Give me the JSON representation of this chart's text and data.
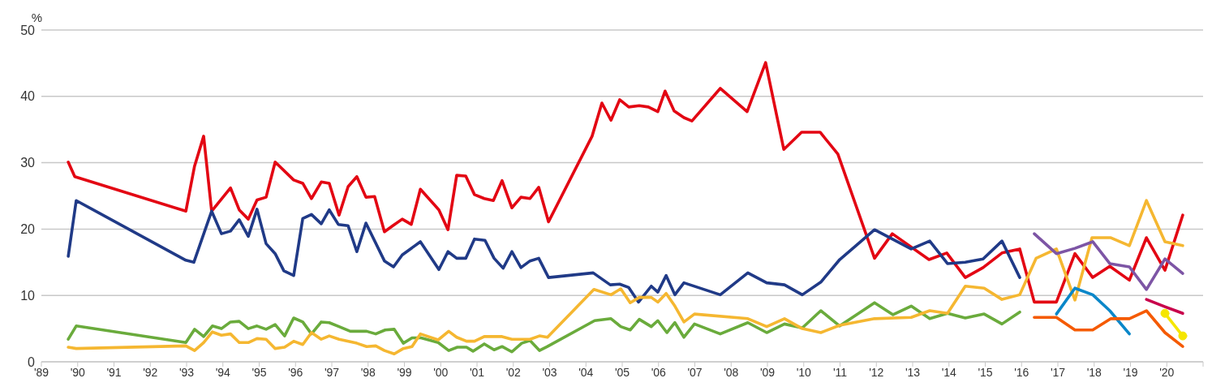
{
  "chart_data": {
    "type": "line",
    "ylabel": "%",
    "xlim": [
      1989,
      2021
    ],
    "ylim": [
      0,
      50
    ],
    "yticks": [
      0,
      10,
      20,
      30,
      40,
      50
    ],
    "xticks": [
      {
        "value": 1989,
        "label": "'89"
      },
      {
        "value": 1990,
        "label": "'90"
      },
      {
        "value": 1991,
        "label": "'91"
      },
      {
        "value": 1992,
        "label": "'92"
      },
      {
        "value": 1993,
        "label": "'93"
      },
      {
        "value": 1994,
        "label": "'94"
      },
      {
        "value": 1995,
        "label": "'95"
      },
      {
        "value": 1996,
        "label": "'96"
      },
      {
        "value": 1997,
        "label": "'97"
      },
      {
        "value": 1998,
        "label": "'98"
      },
      {
        "value": 1999,
        "label": "'99"
      },
      {
        "value": 2000,
        "label": "'00"
      },
      {
        "value": 2001,
        "label": "'01"
      },
      {
        "value": 2002,
        "label": "'02"
      },
      {
        "value": 2003,
        "label": "'03"
      },
      {
        "value": 2004,
        "label": "'04"
      },
      {
        "value": 2005,
        "label": "'05"
      },
      {
        "value": 2006,
        "label": "'06"
      },
      {
        "value": 2007,
        "label": "'07"
      },
      {
        "value": 2008,
        "label": "'08"
      },
      {
        "value": 2009,
        "label": "'09"
      },
      {
        "value": 2010,
        "label": "'10"
      },
      {
        "value": 2011,
        "label": "'11"
      },
      {
        "value": 2012,
        "label": "'12"
      },
      {
        "value": 2013,
        "label": "'13"
      },
      {
        "value": 2014,
        "label": "'14"
      },
      {
        "value": 2015,
        "label": "'15"
      },
      {
        "value": 2016,
        "label": "'16"
      },
      {
        "value": 2017,
        "label": "'17"
      },
      {
        "value": 2018,
        "label": "'18"
      },
      {
        "value": 2019,
        "label": "'19"
      },
      {
        "value": 2020,
        "label": "'20"
      },
      {
        "value": 2021,
        "label": null
      }
    ],
    "grid": "y",
    "line_style": "solid",
    "marker": "none",
    "series": [
      {
        "color": "#e30613",
        "x": [
          1989.74,
          1989.92,
          1992.98,
          1993.22,
          1993.47,
          1993.69,
          1994.21,
          1994.45,
          1994.7,
          1994.94,
          1995.19,
          1995.44,
          1995.95,
          1996.2,
          1996.44,
          1996.71,
          1996.93,
          1997.2,
          1997.45,
          1997.69,
          1997.94,
          1998.18,
          1998.45,
          1998.68,
          1998.94,
          1999.19,
          1999.44,
          1999.95,
          2000.2,
          2000.44,
          2000.69,
          2000.93,
          2001.2,
          2001.45,
          2001.69,
          2001.96,
          2002.21,
          2002.46,
          2002.7,
          2002.97,
          2004.17,
          2004.44,
          2004.69,
          2004.93,
          2005.18,
          2005.47,
          2005.72,
          2005.98,
          2006.18,
          2006.43,
          2006.7,
          2006.92,
          2007.7,
          2008.44,
          2008.95,
          2009.45,
          2009.94,
          2010.45,
          2010.94,
          2011.95,
          2012.44,
          2013.45,
          2013.94,
          2014.45,
          2014.94,
          2015.46,
          2015.95,
          2016.35,
          2016.96,
          2017.47,
          2017.96,
          2018.43,
          2018.97,
          2019.44,
          2019.95,
          2020.44
        ],
        "values": [
          30.1,
          27.9,
          22.7,
          29.5,
          34.0,
          22.7,
          26.2,
          22.9,
          21.5,
          24.4,
          24.8,
          30.1,
          27.4,
          26.9,
          24.6,
          27.1,
          26.9,
          22.1,
          26.4,
          27.9,
          24.8,
          24.9,
          19.6,
          20.5,
          21.5,
          20.7,
          26.0,
          22.9,
          19.9,
          28.1,
          28.0,
          25.2,
          24.6,
          24.3,
          27.3,
          23.2,
          24.8,
          24.6,
          26.3,
          21.1,
          34.0,
          39.0,
          36.4,
          39.5,
          38.4,
          38.6,
          38.4,
          37.7,
          40.8,
          37.8,
          36.8,
          36.3,
          41.2,
          37.7,
          45.1,
          32.0,
          34.6,
          34.6,
          31.3,
          15.6,
          19.3,
          15.4,
          16.4,
          12.7,
          14.2,
          16.4,
          17.0,
          9.0,
          9.0,
          16.3,
          12.7,
          14.4,
          12.3,
          18.7,
          13.8,
          22.1
        ]
      },
      {
        "color": "#203a87",
        "x": [
          1989.74,
          1989.96,
          1992.98,
          1993.2,
          1993.69,
          1993.96,
          1994.21,
          1994.45,
          1994.7,
          1994.94,
          1995.19,
          1995.44,
          1995.68,
          1995.95,
          1996.2,
          1996.44,
          1996.71,
          1996.93,
          1997.18,
          1997.45,
          1997.69,
          1997.94,
          1998.45,
          1998.7,
          1998.94,
          1999.44,
          1999.95,
          2000.2,
          2000.44,
          2000.69,
          2000.93,
          2001.22,
          2001.47,
          2001.72,
          2001.96,
          2002.21,
          2002.46,
          2002.7,
          2002.97,
          2004.2,
          2004.67,
          2004.93,
          2005.18,
          2005.45,
          2005.8,
          2005.98,
          2006.21,
          2006.45,
          2006.7,
          2007.7,
          2008.46,
          2008.98,
          2009.47,
          2009.96,
          2010.47,
          2010.99,
          2011.95,
          2012.96,
          2013.47,
          2013.96,
          2014.45,
          2014.94,
          2015.46,
          2015.95
        ],
        "values": [
          15.9,
          24.3,
          15.3,
          15.0,
          22.7,
          19.3,
          19.7,
          21.4,
          18.9,
          23.0,
          17.8,
          16.3,
          13.7,
          13.0,
          21.6,
          22.2,
          20.8,
          22.9,
          20.7,
          20.5,
          16.6,
          20.9,
          15.2,
          14.3,
          16.1,
          18.1,
          13.9,
          16.6,
          15.6,
          15.6,
          18.5,
          18.3,
          15.6,
          14.1,
          16.6,
          14.2,
          15.2,
          15.6,
          12.7,
          13.4,
          11.6,
          11.7,
          11.2,
          9.0,
          11.4,
          10.5,
          13.0,
          10.1,
          11.9,
          10.1,
          13.4,
          11.9,
          11.6,
          10.1,
          12.0,
          15.4,
          19.9,
          17.0,
          18.2,
          14.8,
          15.0,
          15.5,
          18.2,
          12.7
        ]
      },
      {
        "color": "#6aab3c",
        "x": [
          1989.74,
          1989.96,
          1992.98,
          1993.22,
          1993.47,
          1993.71,
          1993.96,
          1994.21,
          1994.45,
          1994.7,
          1994.94,
          1995.19,
          1995.44,
          1995.7,
          1995.95,
          1996.2,
          1996.44,
          1996.71,
          1996.93,
          1997.2,
          1997.51,
          1997.74,
          1997.96,
          1998.21,
          1998.47,
          1998.72,
          1998.97,
          1999.21,
          1999.46,
          1999.93,
          2000.22,
          2000.46,
          2000.71,
          2000.89,
          2001.2,
          2001.47,
          2001.69,
          2001.96,
          2002.23,
          2002.46,
          2002.72,
          2002.94,
          2004.24,
          2004.69,
          2004.96,
          2005.22,
          2005.47,
          2005.8,
          2005.98,
          2006.23,
          2006.45,
          2006.7,
          2006.99,
          2007.7,
          2008.46,
          2008.98,
          2009.47,
          2009.96,
          2010.47,
          2010.99,
          2011.95,
          2012.46,
          2012.96,
          2013.47,
          2013.96,
          2014.45,
          2014.97,
          2015.46,
          2015.95
        ],
        "values": [
          3.4,
          5.4,
          2.9,
          4.9,
          3.8,
          5.4,
          5.0,
          6.0,
          6.1,
          5.0,
          5.4,
          4.9,
          5.6,
          3.9,
          6.6,
          6.0,
          4.2,
          6.0,
          5.9,
          5.3,
          4.6,
          4.6,
          4.6,
          4.2,
          4.8,
          4.9,
          2.8,
          3.6,
          3.6,
          2.9,
          1.7,
          2.2,
          2.2,
          1.6,
          2.7,
          1.8,
          2.3,
          1.5,
          2.8,
          3.2,
          1.7,
          2.3,
          6.2,
          6.5,
          5.3,
          4.8,
          6.4,
          5.3,
          6.2,
          4.4,
          5.9,
          3.7,
          5.7,
          4.2,
          5.9,
          4.4,
          5.7,
          5.1,
          7.7,
          5.4,
          8.9,
          7.1,
          8.4,
          6.5,
          7.3,
          6.6,
          7.2,
          5.7,
          7.5
        ]
      },
      {
        "color": "#f5b731",
        "x": [
          1989.74,
          1989.96,
          1992.98,
          1993.22,
          1993.47,
          1993.71,
          1993.96,
          1994.21,
          1994.45,
          1994.7,
          1994.94,
          1995.19,
          1995.44,
          1995.7,
          1995.95,
          1996.2,
          1996.44,
          1996.71,
          1996.93,
          1997.2,
          1997.69,
          1997.96,
          1998.21,
          1998.45,
          1998.72,
          1998.97,
          1999.21,
          1999.44,
          1999.93,
          2000.22,
          2000.44,
          2000.71,
          2000.93,
          2001.2,
          2001.69,
          2001.96,
          2002.46,
          2002.72,
          2002.94,
          2004.22,
          2004.69,
          2004.96,
          2005.22,
          2005.47,
          2005.8,
          2005.98,
          2006.21,
          2006.45,
          2006.7,
          2006.99,
          2008.46,
          2008.98,
          2009.47,
          2009.96,
          2010.47,
          2010.99,
          2011.95,
          2012.96,
          2013.47,
          2013.96,
          2014.45,
          2014.97,
          2015.46,
          2015.95,
          2016.4,
          2016.96,
          2017.47,
          2017.94,
          2018.46,
          2018.97,
          2019.44,
          2019.95,
          2020.44
        ],
        "values": [
          2.2,
          2.0,
          2.4,
          1.7,
          2.9,
          4.5,
          4.0,
          4.2,
          2.9,
          2.9,
          3.5,
          3.4,
          2.0,
          2.2,
          3.1,
          2.6,
          4.4,
          3.4,
          3.9,
          3.4,
          2.8,
          2.3,
          2.4,
          1.7,
          1.2,
          2.0,
          2.3,
          4.2,
          3.3,
          4.6,
          3.7,
          3.1,
          3.1,
          3.8,
          3.8,
          3.4,
          3.4,
          3.9,
          3.7,
          10.9,
          10.1,
          11.0,
          8.9,
          9.7,
          9.7,
          9.0,
          10.3,
          8.4,
          6.0,
          7.2,
          6.5,
          5.3,
          6.5,
          5.0,
          4.4,
          5.5,
          6.5,
          6.7,
          7.7,
          7.3,
          11.4,
          11.1,
          9.4,
          10.1,
          15.6,
          17.0,
          9.3,
          18.7,
          18.7,
          17.5,
          24.3,
          18.1,
          17.5
        ]
      },
      {
        "color": "#7d55a5",
        "x": [
          2016.35,
          2016.96,
          2017.47,
          2017.96,
          2018.43,
          2018.97,
          2019.44,
          2019.95,
          2020.44
        ],
        "values": [
          19.3,
          16.3,
          17.1,
          18.1,
          14.8,
          14.3,
          10.9,
          15.5,
          13.3
        ]
      },
      {
        "color": "#0a87c9",
        "x": [
          2016.96,
          2017.47,
          2017.96,
          2018.43,
          2018.97
        ],
        "values": [
          7.2,
          11.1,
          10.1,
          7.7,
          4.2
        ]
      },
      {
        "color": "#f55a00",
        "x": [
          2016.35,
          2016.96,
          2017.47,
          2017.96,
          2018.46,
          2018.97,
          2019.44,
          2019.95,
          2020.44
        ],
        "values": [
          6.7,
          6.7,
          4.8,
          4.8,
          6.5,
          6.5,
          7.7,
          4.4,
          2.3
        ]
      },
      {
        "color": "#c8004b",
        "x": [
          2019.44,
          2019.95,
          2020.44
        ],
        "values": [
          9.4,
          8.3,
          7.3
        ]
      },
      {
        "color": "#f5e600",
        "marker": "circle",
        "x": [
          2019.95,
          2020.44
        ],
        "values": [
          7.3,
          3.9
        ]
      }
    ]
  }
}
